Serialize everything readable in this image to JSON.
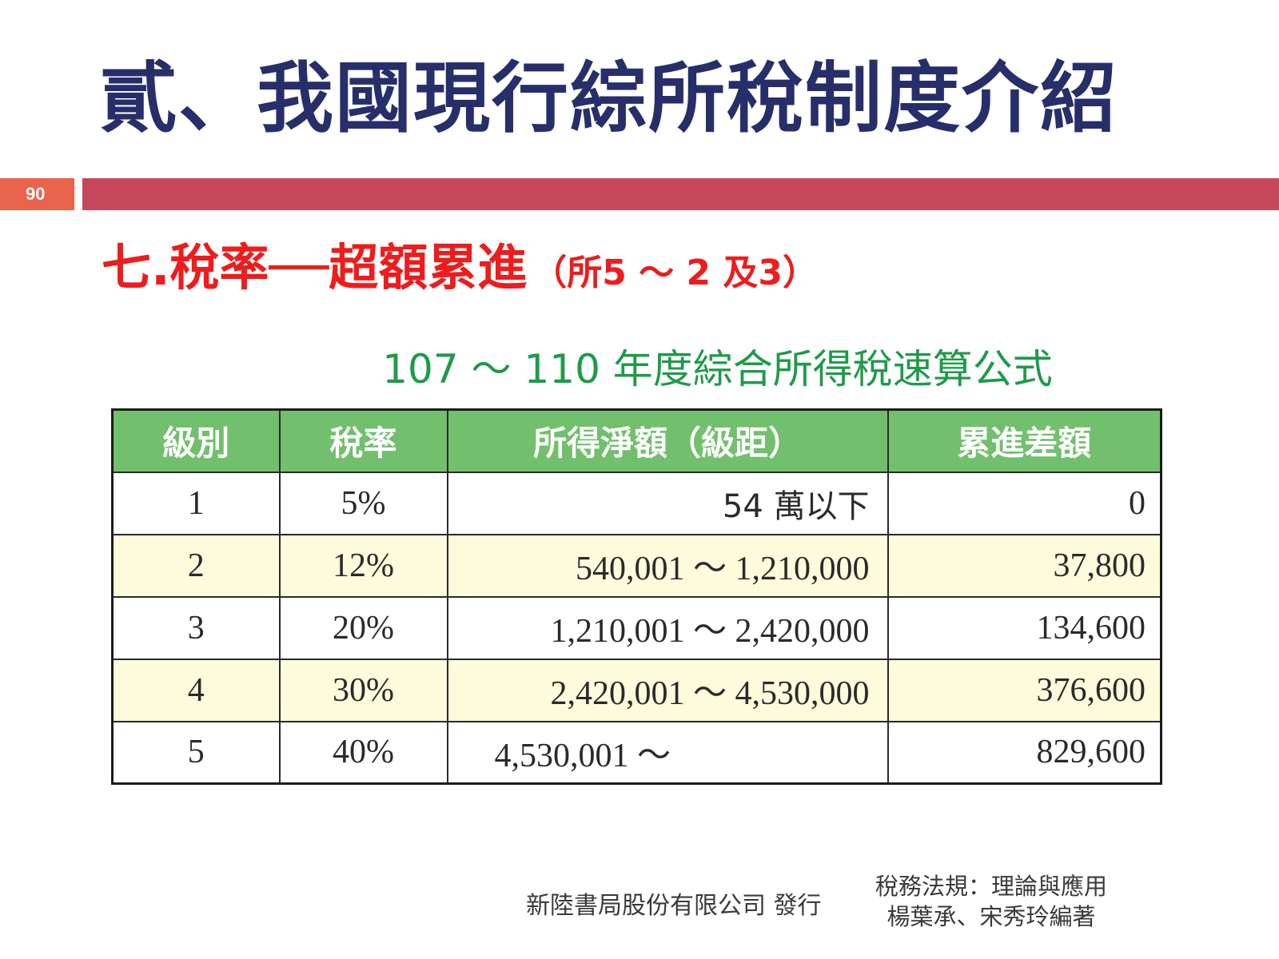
{
  "slide": {
    "title": "貳、我國現行綜所稅制度介紹",
    "page_number": "90",
    "section_heading": "七.稅率──超額累進",
    "section_ref": "（所5 ～ 2 及3）"
  },
  "table": {
    "caption": "107 ～ 110 年度綜合所得稅速算公式",
    "headers": [
      "級別",
      "稅率",
      "所得淨額（級距）",
      "累進差額"
    ],
    "rows": [
      {
        "level": "1",
        "rate": "5%",
        "range": "54 萬以下",
        "diff": "0"
      },
      {
        "level": "2",
        "rate": "12%",
        "range": "540,001 ～ 1,210,000",
        "diff": "37,800"
      },
      {
        "level": "3",
        "rate": "20%",
        "range": "1,210,001 ～ 2,420,000",
        "diff": "134,600"
      },
      {
        "level": "4",
        "rate": "30%",
        "range": "2,420,001 ～ 4,530,000",
        "diff": "376,600"
      },
      {
        "level": "5",
        "rate": "40%",
        "range": "4,530,001 ～",
        "diff": "829,600"
      }
    ]
  },
  "footer": {
    "publisher": "新陸書局股份有限公司 發行",
    "book_title": "稅務法規：理論與應用",
    "authors": "楊葉承、宋秀玲編著"
  },
  "colors": {
    "title": "#262f6a",
    "page_number_bg": "#ea634c",
    "header_bar": "#c7475a",
    "heading_red": "#ee1c1c",
    "caption_green": "#1f9a4a",
    "table_header_bg": "#72bf6d",
    "row_shade": "#fcfbdc"
  }
}
